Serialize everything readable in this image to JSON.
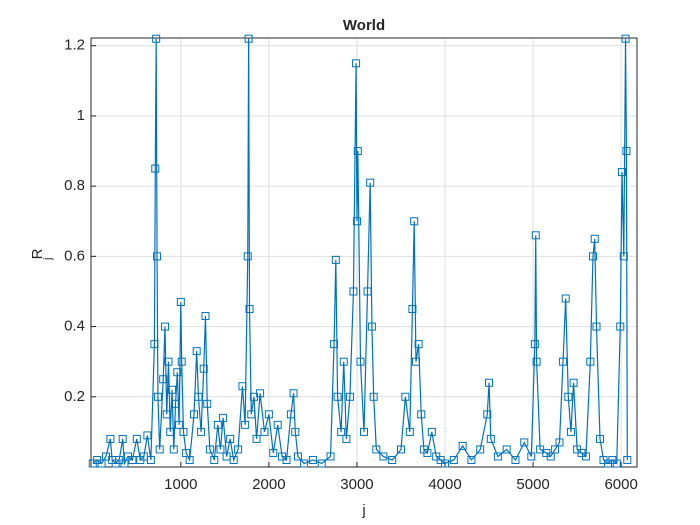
{
  "chart_data": {
    "type": "line",
    "title": "World",
    "xlabel": "j",
    "ylabel": "R",
    "ylabel_subscript": "j",
    "marker": "square",
    "color": "#0072bd",
    "grid": true,
    "xlim": [
      -20,
      6180
    ],
    "ylim": [
      0,
      1.222
    ],
    "xticks": [
      1000,
      2000,
      3000,
      4000,
      5000,
      6000
    ],
    "yticks": [
      0.2,
      0.4,
      0.6,
      0.8,
      1,
      1.2
    ],
    "x": [
      0,
      50,
      100,
      150,
      200,
      220,
      260,
      300,
      340,
      360,
      400,
      450,
      500,
      540,
      580,
      620,
      660,
      700,
      710,
      720,
      730,
      740,
      760,
      800,
      820,
      840,
      860,
      880,
      900,
      920,
      940,
      960,
      980,
      1000,
      1010,
      1030,
      1060,
      1100,
      1150,
      1180,
      1200,
      1230,
      1260,
      1280,
      1300,
      1330,
      1380,
      1420,
      1450,
      1480,
      1520,
      1560,
      1600,
      1650,
      1700,
      1730,
      1760,
      1770,
      1780,
      1800,
      1830,
      1860,
      1900,
      1950,
      2000,
      2050,
      2100,
      2150,
      2200,
      2250,
      2280,
      2300,
      2330,
      2400,
      2500,
      2600,
      2700,
      2740,
      2760,
      2780,
      2820,
      2850,
      2880,
      2920,
      2960,
      2990,
      3000,
      3010,
      3040,
      3080,
      3120,
      3150,
      3170,
      3190,
      3220,
      3300,
      3400,
      3500,
      3550,
      3600,
      3630,
      3650,
      3670,
      3700,
      3730,
      3760,
      3800,
      3850,
      3900,
      3950,
      4000,
      4100,
      4200,
      4300,
      4400,
      4480,
      4500,
      4520,
      4600,
      4700,
      4800,
      4900,
      4980,
      5020,
      5030,
      5040,
      5080,
      5150,
      5200,
      5250,
      5300,
      5340,
      5370,
      5400,
      5430,
      5460,
      5500,
      5550,
      5600,
      5650,
      5680,
      5700,
      5720,
      5760,
      5800,
      5850,
      5900,
      5950,
      5990,
      6010,
      6030,
      6050,
      6060,
      6070
    ],
    "values": [
      0.01,
      0.02,
      0.01,
      0.03,
      0.08,
      0.02,
      0.01,
      0.02,
      0.08,
      0.01,
      0.03,
      0.02,
      0.08,
      0.02,
      0.03,
      0.09,
      0.02,
      0.35,
      0.85,
      1.22,
      0.6,
      0.2,
      0.05,
      0.25,
      0.4,
      0.15,
      0.3,
      0.1,
      0.22,
      0.05,
      0.18,
      0.27,
      0.12,
      0.47,
      0.3,
      0.1,
      0.04,
      0.02,
      0.15,
      0.33,
      0.2,
      0.1,
      0.28,
      0.43,
      0.18,
      0.05,
      0.02,
      0.12,
      0.05,
      0.14,
      0.03,
      0.08,
      0.02,
      0.05,
      0.23,
      0.12,
      0.6,
      1.22,
      0.45,
      0.15,
      0.2,
      0.08,
      0.21,
      0.1,
      0.15,
      0.04,
      0.12,
      0.03,
      0.02,
      0.15,
      0.21,
      0.1,
      0.03,
      0.01,
      0.02,
      0.01,
      0.03,
      0.35,
      0.59,
      0.2,
      0.1,
      0.3,
      0.08,
      0.2,
      0.5,
      1.15,
      0.7,
      0.9,
      0.3,
      0.1,
      0.5,
      0.81,
      0.4,
      0.2,
      0.05,
      0.03,
      0.02,
      0.05,
      0.2,
      0.1,
      0.45,
      0.7,
      0.3,
      0.35,
      0.15,
      0.05,
      0.04,
      0.1,
      0.03,
      0.02,
      0.01,
      0.02,
      0.06,
      0.02,
      0.05,
      0.15,
      0.24,
      0.08,
      0.03,
      0.05,
      0.02,
      0.07,
      0.03,
      0.35,
      0.66,
      0.3,
      0.05,
      0.04,
      0.03,
      0.05,
      0.07,
      0.3,
      0.48,
      0.2,
      0.1,
      0.24,
      0.05,
      0.04,
      0.03,
      0.3,
      0.6,
      0.65,
      0.4,
      0.08,
      0.02,
      0.01,
      0.02,
      0.01,
      0.4,
      0.84,
      0.6,
      1.22,
      0.9,
      0.02
    ]
  }
}
